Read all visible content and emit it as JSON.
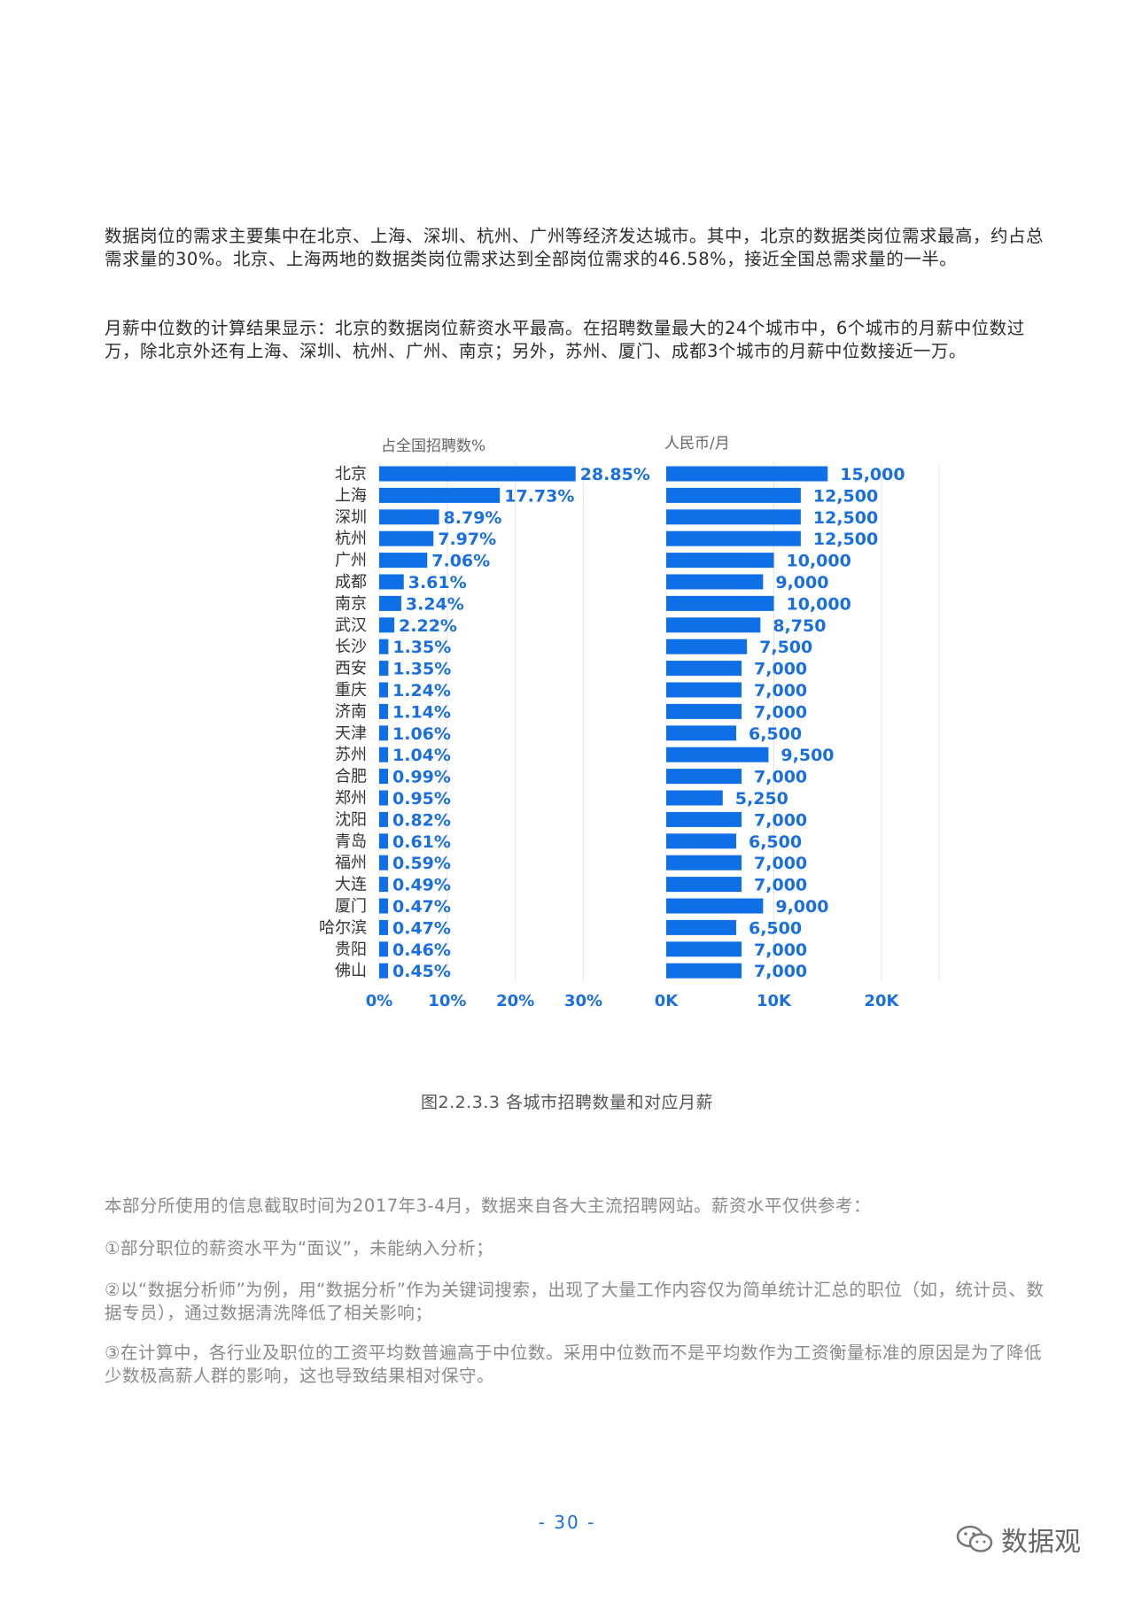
{
  "paragraphs": {
    "p1": "数据岗位的需求主要集中在北京、上海、深圳、杭州、广州等经济发达城市。其中，北京的数据类岗位需求最高，约占总需求量的30%。北京、上海两地的数据类岗位需求达到全部岗位需求的46.58%，接近全国总需求量的一半。",
    "p2": "月薪中位数的计算结果显示：北京的数据岗位薪资水平最高。在招聘数量最大的24个城市中，6个城市的月薪中位数过万，除北京外还有上海、深圳、杭州、广州、南京；另外，苏州、厦门、成都3个城市的月薪中位数接近一万。"
  },
  "chart_data": {
    "type": "bar",
    "orientation": "horizontal",
    "categories": [
      "北京",
      "上海",
      "深圳",
      "杭州",
      "广州",
      "成都",
      "南京",
      "武汉",
      "长沙",
      "西安",
      "重庆",
      "济南",
      "天津",
      "苏州",
      "合肥",
      "郑州",
      "沈阳",
      "青岛",
      "福州",
      "大连",
      "厦门",
      "哈尔滨",
      "贵阳",
      "佛山"
    ],
    "left_panel": {
      "axis_title": "占全国招聘数%",
      "values": [
        28.85,
        17.73,
        8.79,
        7.97,
        7.06,
        3.61,
        3.24,
        2.22,
        1.35,
        1.35,
        1.24,
        1.14,
        1.06,
        1.04,
        0.99,
        0.95,
        0.82,
        0.61,
        0.59,
        0.49,
        0.47,
        0.47,
        0.46,
        0.45
      ],
      "labels": [
        "28.85%",
        "17.73%",
        "8.79%",
        "7.97%",
        "7.06%",
        "3.61%",
        "3.24%",
        "2.22%",
        "1.35%",
        "1.35%",
        "1.24%",
        "1.14%",
        "1.06%",
        "1.04%",
        "0.99%",
        "0.95%",
        "0.82%",
        "0.61%",
        "0.59%",
        "0.49%",
        "0.47%",
        "0.47%",
        "0.46%",
        "0.45%"
      ],
      "xlim": [
        0,
        35
      ],
      "ticks": [
        0,
        10,
        20,
        30
      ],
      "tick_labels": [
        "0%",
        "10%",
        "20%",
        "30%"
      ]
    },
    "right_panel": {
      "axis_title": "人民币/月",
      "values": [
        15000,
        12500,
        12500,
        12500,
        10000,
        9000,
        10000,
        8750,
        7500,
        7000,
        7000,
        7000,
        6500,
        9500,
        7000,
        5250,
        7000,
        6500,
        7000,
        7000,
        9000,
        6500,
        7000,
        7000
      ],
      "labels": [
        "15,000",
        "12,500",
        "12,500",
        "12,500",
        "10,000",
        "9,000",
        "10,000",
        "8,750",
        "7,500",
        "7,000",
        "7,000",
        "7,000",
        "6,500",
        "9,500",
        "7,000",
        "5,250",
        "7,000",
        "6,500",
        "7,000",
        "7,000",
        "9,000",
        "6,500",
        "7,000",
        "7,000"
      ],
      "xlim": [
        0,
        25000
      ],
      "ticks": [
        0,
        10000,
        20000
      ],
      "tick_labels": [
        "0K",
        "10K",
        "20K"
      ]
    },
    "bar_color": "#0f6fe6",
    "grid": true
  },
  "figure_caption": "图2.2.3.3  各城市招聘数量和对应月薪",
  "notes": {
    "n0": "本部分所使用的信息截取时间为2017年3-4月，数据来自各大主流招聘网站。薪资水平仅供参考：",
    "n1": "①部分职位的薪资水平为“面议”，未能纳入分析；",
    "n2": "②以“数据分析师”为例，用“数据分析”作为关键词搜索，出现了大量工作内容仅为简单统计汇总的职位（如，统计员、数据专员），通过数据清洗降低了相关影响；",
    "n3": "③在计算中，各行业及职位的工资平均数普遍高于中位数。采用中位数而不是平均数作为工资衡量标准的原因是为了降低少数极高薪人群的影响，这也导致结果相对保守。"
  },
  "page_number": "- 30 -",
  "watermark": {
    "icon": "wechat-icon",
    "text": "数据观"
  }
}
